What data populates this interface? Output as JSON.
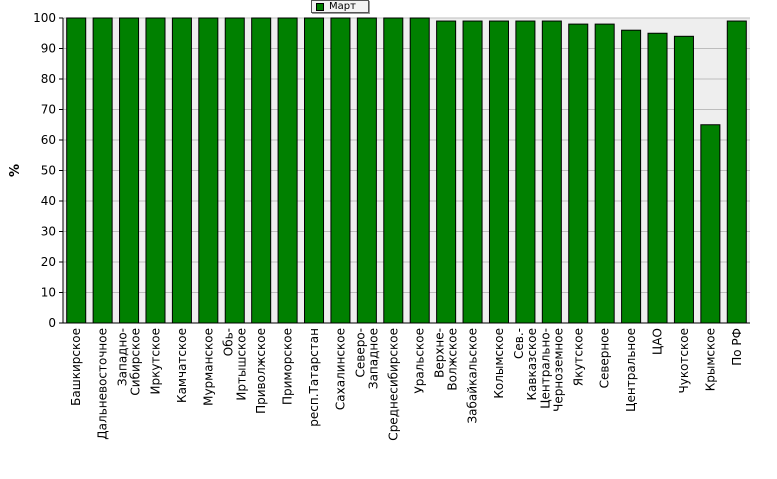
{
  "legend": {
    "label": "Март"
  },
  "chart_data": {
    "type": "bar",
    "title": "",
    "xlabel": "",
    "ylabel": "%",
    "ylim": [
      0,
      100
    ],
    "yticks": [
      0,
      10,
      20,
      30,
      40,
      50,
      60,
      70,
      80,
      90,
      100
    ],
    "grid": true,
    "legend_position": "top-center",
    "bar_color": "#008000",
    "plot_background": "#eeeeee",
    "categories": [
      "Башкирское",
      "Дальневосточное",
      "Западно-\nСибирское",
      "Иркутское",
      "Камчатское",
      "Мурманское",
      "Обь-\nИртышское",
      "Приволжское",
      "Приморское",
      "респ.Татарстан",
      "Сахалинское",
      "Северо-\nЗападное",
      "Среднесибирское",
      "Уральское",
      "Верхне-\nВолжское",
      "Забайкальское",
      "Колымское",
      "Сев.-\nКавказское",
      "Центрально-\nЧерноземное",
      "Якутское",
      "Северное",
      "Центральное",
      "ЦАО",
      "Чукотское",
      "Крымское",
      "По РФ"
    ],
    "series": [
      {
        "name": "Март",
        "values": [
          100,
          100,
          100,
          100,
          100,
          100,
          100,
          100,
          100,
          100,
          100,
          100,
          100,
          100,
          99,
          99,
          99,
          99,
          99,
          98,
          98,
          96,
          95,
          94,
          65,
          99
        ]
      }
    ]
  }
}
